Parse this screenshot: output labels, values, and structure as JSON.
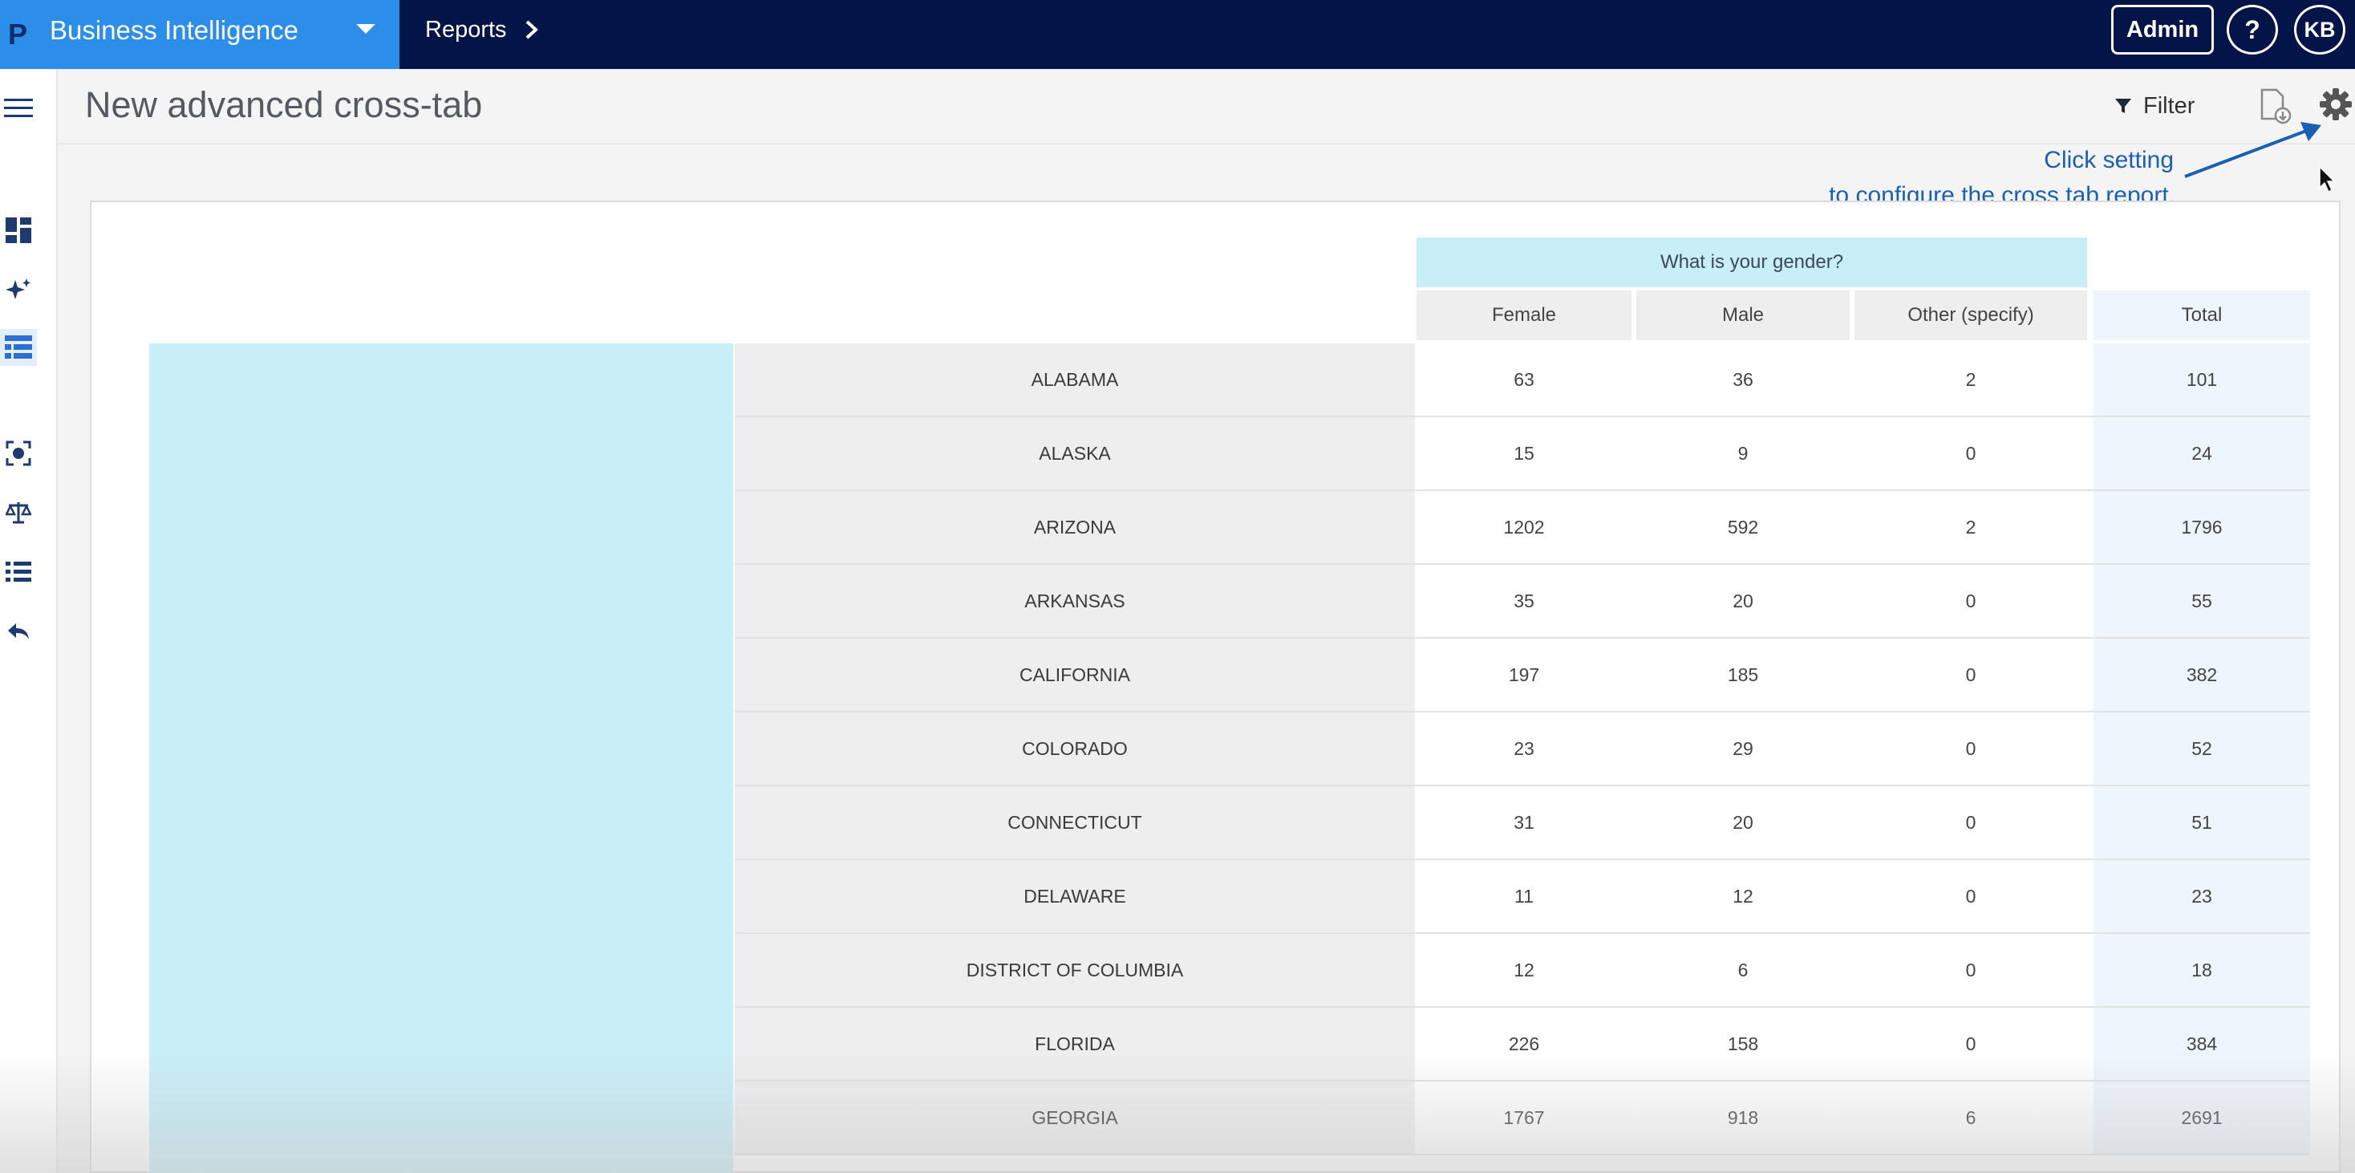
{
  "topbar": {
    "logo": "P",
    "app_title": "Business Intelligence",
    "breadcrumb": "Reports",
    "admin_label": "Admin",
    "help_label": "?",
    "avatar_initials": "KB"
  },
  "page": {
    "title": "New advanced cross-tab",
    "filter_label": "Filter"
  },
  "annotation": {
    "line1": "Click setting",
    "line2": "to configure the cross tab report."
  },
  "sidebar": {
    "items": [
      {
        "icon": "menu-icon"
      },
      {
        "icon": "dashboard-icon"
      },
      {
        "icon": "sparkle-icon"
      },
      {
        "icon": "table-icon",
        "active": true
      },
      {
        "icon": "scan-icon"
      },
      {
        "icon": "scale-icon"
      },
      {
        "icon": "list-icon"
      },
      {
        "icon": "reply-icon"
      }
    ]
  },
  "crosstab": {
    "group_header": "What is your gender?",
    "columns": [
      "Female",
      "Male",
      "Other (specify)"
    ],
    "total_label": "Total",
    "rows": [
      {
        "label": "ALABAMA",
        "values": [
          "63",
          "36",
          "2"
        ],
        "total": "101"
      },
      {
        "label": "ALASKA",
        "values": [
          "15",
          "9",
          "0"
        ],
        "total": "24"
      },
      {
        "label": "ARIZONA",
        "values": [
          "1202",
          "592",
          "2"
        ],
        "total": "1796"
      },
      {
        "label": "ARKANSAS",
        "values": [
          "35",
          "20",
          "0"
        ],
        "total": "55"
      },
      {
        "label": "CALIFORNIA",
        "values": [
          "197",
          "185",
          "0"
        ],
        "total": "382"
      },
      {
        "label": "COLORADO",
        "values": [
          "23",
          "29",
          "0"
        ],
        "total": "52"
      },
      {
        "label": "CONNECTICUT",
        "values": [
          "31",
          "20",
          "0"
        ],
        "total": "51"
      },
      {
        "label": "DELAWARE",
        "values": [
          "11",
          "12",
          "0"
        ],
        "total": "23"
      },
      {
        "label": "DISTRICT OF COLUMBIA",
        "values": [
          "12",
          "6",
          "0"
        ],
        "total": "18"
      },
      {
        "label": "FLORIDA",
        "values": [
          "226",
          "158",
          "0"
        ],
        "total": "384"
      },
      {
        "label": "GEORGIA",
        "values": [
          "1767",
          "918",
          "6"
        ],
        "total": "2691"
      }
    ]
  },
  "colors": {
    "topbar": "#031449",
    "brand": "#2c8ee8",
    "header_highlight": "#c8eef8",
    "annotation": "#1a5fb4"
  }
}
